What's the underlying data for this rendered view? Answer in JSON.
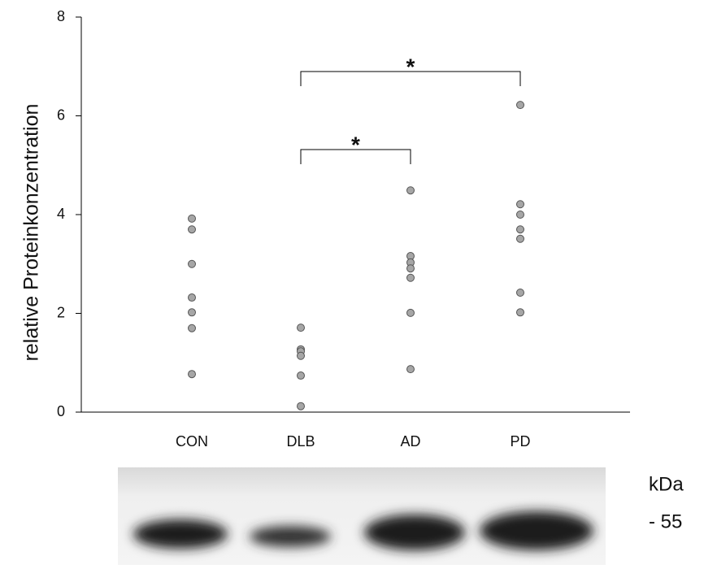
{
  "chart_data": {
    "type": "strip",
    "y_label": "relative Proteinkonzentration",
    "categories": [
      "CON",
      "DLB",
      "AD",
      "PD"
    ],
    "groups": [
      [
        3.92,
        3.7,
        3.0,
        2.32,
        2.02,
        1.7,
        0.77
      ],
      [
        1.71,
        1.27,
        1.23,
        1.14,
        0.74,
        0.12
      ],
      [
        4.49,
        3.16,
        3.03,
        2.91,
        2.72,
        2.01,
        0.87
      ],
      [
        6.22,
        4.21,
        4.0,
        3.7,
        3.51,
        2.42,
        2.02
      ]
    ],
    "color": "#a6a6a6",
    "ylim": [
      0,
      8
    ],
    "yticks": [
      0,
      2,
      4,
      6,
      8
    ],
    "grid": false,
    "significance": [
      {
        "between": [
          "DLB",
          "PD"
        ],
        "label": "*"
      },
      {
        "between": [
          "DLB",
          "AD"
        ],
        "label": "*"
      }
    ]
  },
  "blot": {
    "unit": "kDa",
    "marker": "- 55"
  }
}
